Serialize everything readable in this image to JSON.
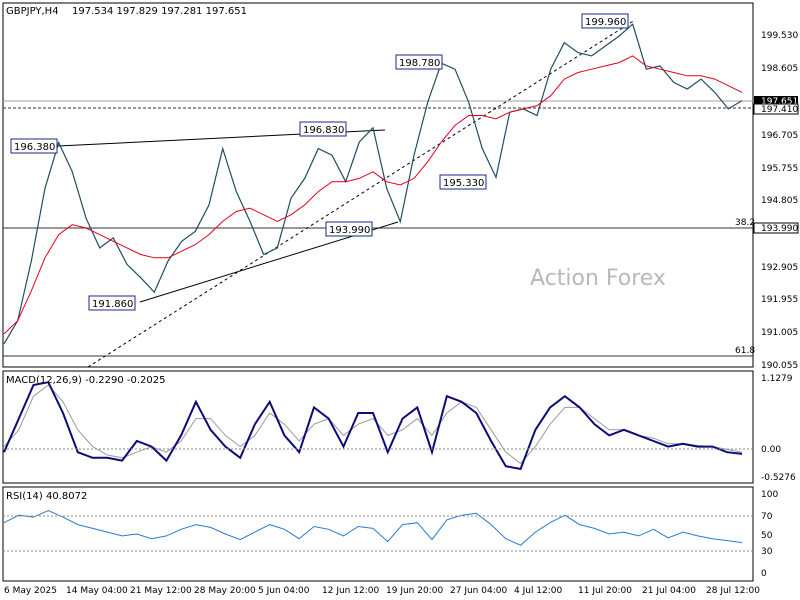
{
  "header": {
    "symbol": "GBPJPY,H4",
    "ohlc": "197.534 197.829 197.281 197.651"
  },
  "watermark": "Action Forex",
  "colors": {
    "price": "#1f4f5f",
    "sma": "#e4001b",
    "macd": "#0b0b7a",
    "signal": "#9a9a9a",
    "rsi": "#2a7ad0",
    "grid": "#888888"
  },
  "chart_data": [
    {
      "type": "line",
      "panel": "price",
      "title": "GBPJPY,H4",
      "ylim": [
        189.6,
        200.6
      ],
      "y_ticks": [
        "199.530",
        "198.605",
        "197.651",
        "197.410",
        "196.705",
        "195.755",
        "194.805",
        "193.990",
        "192.905",
        "191.955",
        "191.005",
        "190.055"
      ],
      "x_ticks": [
        "6 May 2025",
        "14 May 04:00",
        "21 May 12:00",
        "28 May 20:00",
        "5 Jun 04:00",
        "12 Jun 12:00",
        "19 Jun 20:00",
        "27 Jun 04:00",
        "4 Jul 12:00",
        "11 Jul 20:00",
        "21 Jul 04:00",
        "28 Jul 12:00"
      ],
      "series": [
        {
          "values": [
            190.3,
            191.0,
            192.8,
            195.0,
            196.38,
            195.5,
            194.1,
            193.2,
            193.5,
            192.7,
            192.3,
            191.86,
            192.8,
            193.4,
            193.7,
            194.5,
            196.2,
            194.9,
            194.0,
            193.0,
            193.2,
            194.7,
            195.3,
            196.2,
            196.0,
            195.2,
            196.4,
            196.83,
            195.0,
            193.99,
            196.0,
            197.6,
            198.78,
            198.6,
            197.6,
            196.2,
            195.33,
            197.3,
            197.4,
            197.2,
            198.6,
            199.4,
            199.1,
            199.0,
            199.3,
            199.6,
            199.96,
            198.6,
            198.7,
            198.2,
            198.0,
            198.3,
            197.9,
            197.4,
            197.651
          ]
        },
        {
          "values": [
            190.6,
            191.0,
            191.9,
            192.9,
            193.6,
            193.9,
            193.8,
            193.6,
            193.4,
            193.2,
            193.0,
            192.9,
            192.9,
            193.1,
            193.3,
            193.6,
            194.0,
            194.3,
            194.4,
            194.2,
            194.0,
            194.2,
            194.5,
            194.9,
            195.2,
            195.2,
            195.3,
            195.5,
            195.2,
            195.1,
            195.3,
            195.8,
            196.4,
            196.9,
            197.2,
            197.2,
            197.1,
            197.3,
            197.4,
            197.5,
            197.8,
            198.3,
            198.5,
            198.6,
            198.7,
            198.8,
            199.0,
            198.7,
            198.6,
            198.5,
            198.4,
            198.4,
            198.3,
            198.1,
            197.9
          ]
        }
      ],
      "levels": {
        "fib_38_2": "38.2",
        "fib_38_2_price": "193.990",
        "fib_61_8": "61.8",
        "fib_61_8_price": 190.16
      },
      "annotations": [
        "196.380",
        "191.860",
        "196.830",
        "193.990",
        "198.780",
        "195.330",
        "199.960"
      ]
    },
    {
      "type": "line",
      "panel": "macd",
      "title": "MACD(12,26,9) -0.2290 -0.2025",
      "ylim": [
        -0.75,
        1.25
      ],
      "y_ticks": [
        "1.1279",
        "0.00",
        "-0.5276"
      ],
      "series": [
        {
          "values": [
            -0.2,
            0.4,
            1.0,
            1.05,
            0.5,
            -0.2,
            -0.3,
            -0.3,
            -0.35,
            0.0,
            -0.1,
            -0.35,
            0.1,
            0.7,
            0.2,
            -0.1,
            -0.3,
            0.3,
            0.7,
            0.1,
            -0.2,
            0.6,
            0.4,
            -0.1,
            0.5,
            0.5,
            -0.2,
            0.4,
            0.6,
            -0.2,
            0.8,
            0.7,
            0.5,
            0.0,
            -0.45,
            -0.5,
            0.2,
            0.6,
            0.8,
            0.6,
            0.3,
            0.1,
            0.2,
            0.1,
            0.0,
            -0.1,
            -0.05,
            -0.1,
            -0.1,
            -0.2,
            -0.23
          ]
        },
        {
          "values": [
            -0.1,
            0.2,
            0.8,
            1.0,
            0.7,
            0.2,
            -0.1,
            -0.25,
            -0.3,
            -0.2,
            -0.1,
            -0.2,
            0.0,
            0.4,
            0.4,
            0.1,
            -0.1,
            0.1,
            0.5,
            0.3,
            0.0,
            0.3,
            0.4,
            0.1,
            0.3,
            0.4,
            0.1,
            0.2,
            0.4,
            0.1,
            0.5,
            0.7,
            0.6,
            0.2,
            -0.2,
            -0.4,
            -0.1,
            0.3,
            0.6,
            0.6,
            0.4,
            0.2,
            0.2,
            0.1,
            0.05,
            -0.05,
            -0.05,
            -0.08,
            -0.1,
            -0.15,
            -0.2
          ]
        }
      ]
    },
    {
      "type": "line",
      "panel": "rsi",
      "title": "RSI(14) 40.8072",
      "ylim": [
        0,
        100
      ],
      "y_ticks": [
        "100",
        "70",
        "50",
        "30",
        "0"
      ],
      "series": [
        {
          "values": [
            62,
            70,
            68,
            75,
            68,
            60,
            56,
            52,
            48,
            50,
            45,
            48,
            55,
            60,
            57,
            50,
            44,
            52,
            60,
            55,
            45,
            58,
            55,
            48,
            58,
            56,
            42,
            60,
            62,
            44,
            65,
            70,
            72,
            60,
            45,
            38,
            52,
            62,
            70,
            60,
            56,
            50,
            52,
            48,
            55,
            46,
            52,
            48,
            45,
            43,
            40.8
          ]
        }
      ]
    }
  ]
}
